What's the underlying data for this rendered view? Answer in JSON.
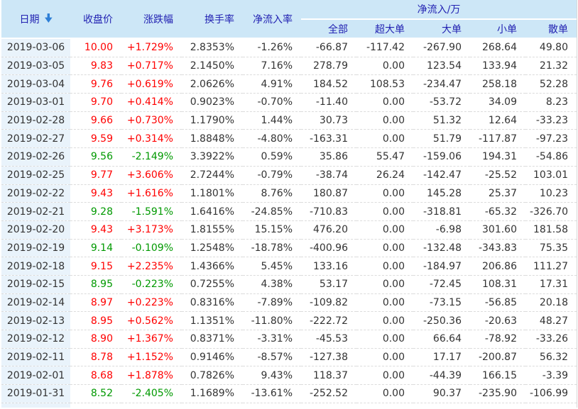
{
  "colors": {
    "header_bg": "#cde7f7",
    "header_text": "#2222b2",
    "date_col_bg": "#e9f3fb",
    "up_color": "#ff0000",
    "down_color": "#009900",
    "text_neutral": "#333333",
    "row_divider": "#dcdcdc",
    "table_border": "#d8d8d8"
  },
  "table": {
    "group_header": "净流入/万",
    "columns": {
      "date": "日期",
      "close": "收盘价",
      "change": "涨跌幅",
      "turnover": "换手率",
      "inflow_rate": "净流入率"
    },
    "sub_columns": {
      "all": "全部",
      "super_large": "超大单",
      "large": "大单",
      "small": "小单",
      "retail": "散单"
    },
    "sort_icon": "sort-descending-arrow",
    "row_keys": [
      "date",
      "close",
      "change",
      "turnover",
      "inflow_rate",
      "all",
      "super_large",
      "large",
      "small",
      "retail"
    ],
    "rows": [
      {
        "date": "2019-03-06",
        "close": "10.00",
        "change": "+1.729%",
        "turnover": "2.8353%",
        "inflow_rate": "-1.26%",
        "all": "-66.87",
        "super_large": "-117.42",
        "large": "-267.90",
        "small": "268.64",
        "retail": "49.80"
      },
      {
        "date": "2019-03-05",
        "close": "9.83",
        "change": "+0.717%",
        "turnover": "2.1450%",
        "inflow_rate": "7.16%",
        "all": "278.79",
        "super_large": "0.00",
        "large": "123.54",
        "small": "133.94",
        "retail": "21.32"
      },
      {
        "date": "2019-03-04",
        "close": "9.76",
        "change": "+0.619%",
        "turnover": "2.0626%",
        "inflow_rate": "4.91%",
        "all": "184.52",
        "super_large": "108.53",
        "large": "-234.47",
        "small": "258.18",
        "retail": "52.28"
      },
      {
        "date": "2019-03-01",
        "close": "9.70",
        "change": "+0.414%",
        "turnover": "0.9023%",
        "inflow_rate": "-0.70%",
        "all": "-11.40",
        "super_large": "0.00",
        "large": "-53.72",
        "small": "34.09",
        "retail": "8.23"
      },
      {
        "date": "2019-02-28",
        "close": "9.66",
        "change": "+0.730%",
        "turnover": "1.1790%",
        "inflow_rate": "1.44%",
        "all": "30.73",
        "super_large": "0.00",
        "large": "51.32",
        "small": "12.64",
        "retail": "-33.23"
      },
      {
        "date": "2019-02-27",
        "close": "9.59",
        "change": "+0.314%",
        "turnover": "1.8848%",
        "inflow_rate": "-4.80%",
        "all": "-163.31",
        "super_large": "0.00",
        "large": "51.79",
        "small": "-117.87",
        "retail": "-97.23"
      },
      {
        "date": "2019-02-26",
        "close": "9.56",
        "change": "-2.149%",
        "turnover": "3.3922%",
        "inflow_rate": "0.59%",
        "all": "35.86",
        "super_large": "55.47",
        "large": "-159.06",
        "small": "194.31",
        "retail": "-54.86"
      },
      {
        "date": "2019-02-25",
        "close": "9.77",
        "change": "+3.606%",
        "turnover": "2.7244%",
        "inflow_rate": "-0.79%",
        "all": "-38.74",
        "super_large": "26.24",
        "large": "-142.47",
        "small": "-25.52",
        "retail": "103.01"
      },
      {
        "date": "2019-02-22",
        "close": "9.43",
        "change": "+1.616%",
        "turnover": "1.1801%",
        "inflow_rate": "8.76%",
        "all": "180.87",
        "super_large": "0.00",
        "large": "145.28",
        "small": "25.37",
        "retail": "10.23"
      },
      {
        "date": "2019-02-21",
        "close": "9.28",
        "change": "-1.591%",
        "turnover": "1.6416%",
        "inflow_rate": "-24.85%",
        "all": "-710.83",
        "super_large": "0.00",
        "large": "-318.81",
        "small": "-65.32",
        "retail": "-326.70"
      },
      {
        "date": "2019-02-20",
        "close": "9.43",
        "change": "+3.173%",
        "turnover": "1.8155%",
        "inflow_rate": "15.15%",
        "all": "476.20",
        "super_large": "0.00",
        "large": "-6.98",
        "small": "301.60",
        "retail": "181.58"
      },
      {
        "date": "2019-02-19",
        "close": "9.14",
        "change": "-0.109%",
        "turnover": "1.2548%",
        "inflow_rate": "-18.78%",
        "all": "-400.96",
        "super_large": "0.00",
        "large": "-132.48",
        "small": "-343.83",
        "retail": "75.35"
      },
      {
        "date": "2019-02-18",
        "close": "9.15",
        "change": "+2.235%",
        "turnover": "1.4366%",
        "inflow_rate": "5.45%",
        "all": "133.16",
        "super_large": "0.00",
        "large": "-184.97",
        "small": "206.86",
        "retail": "111.27"
      },
      {
        "date": "2019-02-15",
        "close": "8.95",
        "change": "-0.223%",
        "turnover": "0.7255%",
        "inflow_rate": "4.38%",
        "all": "53.17",
        "super_large": "0.00",
        "large": "-72.45",
        "small": "108.31",
        "retail": "17.31"
      },
      {
        "date": "2019-02-14",
        "close": "8.97",
        "change": "+0.223%",
        "turnover": "0.8316%",
        "inflow_rate": "-7.89%",
        "all": "-109.82",
        "super_large": "0.00",
        "large": "-73.15",
        "small": "-56.85",
        "retail": "20.18"
      },
      {
        "date": "2019-02-13",
        "close": "8.95",
        "change": "+0.562%",
        "turnover": "1.1351%",
        "inflow_rate": "-11.80%",
        "all": "-222.72",
        "super_large": "0.00",
        "large": "-250.36",
        "small": "-20.63",
        "retail": "48.27"
      },
      {
        "date": "2019-02-12",
        "close": "8.90",
        "change": "+1.367%",
        "turnover": "0.8371%",
        "inflow_rate": "-3.31%",
        "all": "-45.53",
        "super_large": "0.00",
        "large": "66.64",
        "small": "-78.92",
        "retail": "-33.26"
      },
      {
        "date": "2019-02-11",
        "close": "8.78",
        "change": "+1.152%",
        "turnover": "0.9146%",
        "inflow_rate": "-8.57%",
        "all": "-127.38",
        "super_large": "0.00",
        "large": "17.17",
        "small": "-200.87",
        "retail": "56.32"
      },
      {
        "date": "2019-02-01",
        "close": "8.68",
        "change": "+1.878%",
        "turnover": "0.7826%",
        "inflow_rate": "9.43%",
        "all": "118.37",
        "super_large": "0.00",
        "large": "-44.39",
        "small": "166.15",
        "retail": "-3.39"
      },
      {
        "date": "2019-01-31",
        "close": "8.52",
        "change": "-2.405%",
        "turnover": "1.1689%",
        "inflow_rate": "-13.61%",
        "all": "-252.52",
        "super_large": "0.00",
        "large": "90.37",
        "small": "-235.90",
        "retail": "-106.99"
      }
    ]
  }
}
